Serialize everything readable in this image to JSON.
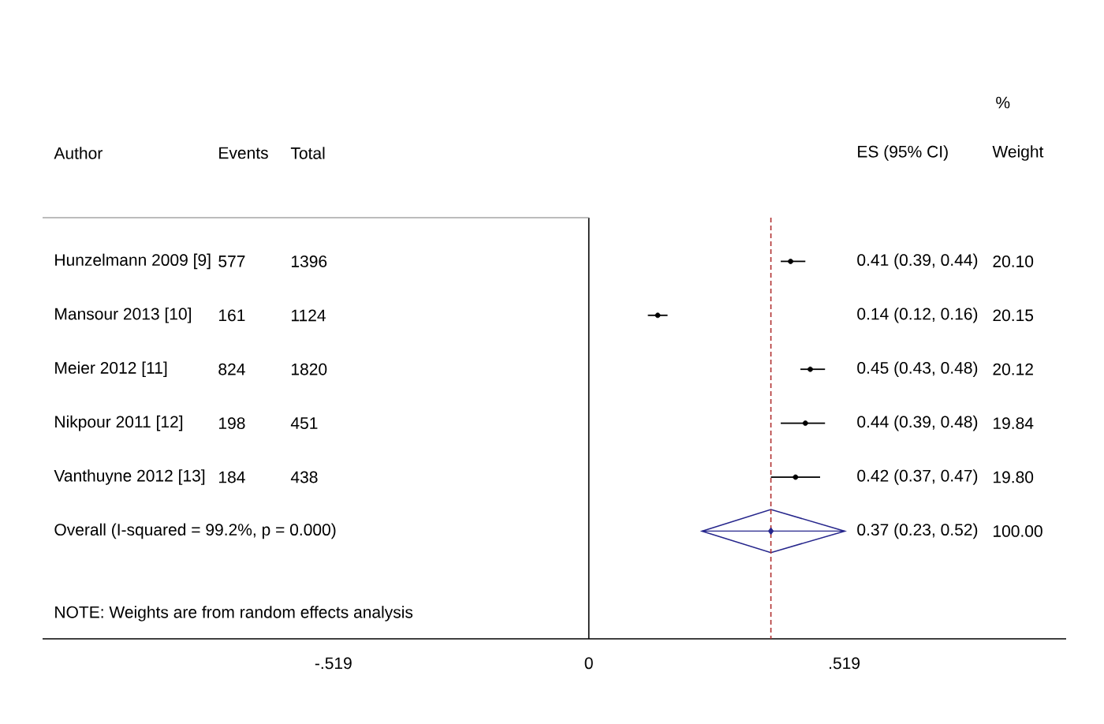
{
  "chart_data": {
    "type": "scatter",
    "orientation": "horizontal",
    "ylabel": "Author",
    "categories": [
      "Hunzelmann 2009 [9]",
      "Mansour 2013 [10]",
      "Meier 2012 [11]",
      "Nikpour 2011 [12]",
      "Vanthuyne 2012 [13]",
      "Overall (I-squared = 99.2%, p = 0.000)"
    ],
    "series": [
      {
        "color": "#000000",
        "marker": "circle",
        "values": [
          0.41,
          0.14,
          0.45,
          0.44,
          0.42,
          null
        ],
        "errors": [
          [
            0.39,
            0.44
          ],
          [
            0.12,
            0.16
          ],
          [
            0.43,
            0.48
          ],
          [
            0.39,
            0.48
          ],
          [
            0.37,
            0.47
          ],
          null
        ]
      },
      {
        "color": "#26268c",
        "marker": "diamond",
        "values": [
          null,
          null,
          null,
          null,
          null,
          0.37
        ],
        "errors": [
          null,
          null,
          null,
          null,
          null,
          [
            0.23,
            0.52
          ]
        ]
      }
    ],
    "xlim": [
      -1.11,
      0.97
    ],
    "xticks": [
      {
        "value": -0.519,
        "label": "-.519"
      },
      0,
      {
        "value": 0.519,
        "label": ".519"
      }
    ],
    "ref_lines": [
      {
        "axis": "x",
        "value": 0,
        "color": "#000000",
        "line_style": "solid"
      },
      {
        "axis": "x",
        "value": 0.37,
        "color": "#b03030",
        "line_style": "dashed"
      }
    ],
    "annotations": [
      "Events",
      "Total",
      "ES (95% CI)",
      "%",
      "Weight",
      "577",
      "161",
      "824",
      "198",
      "184",
      "1396",
      "1124",
      "1820",
      "451",
      "438",
      "0.41 (0.39, 0.44)",
      "0.14 (0.12, 0.16)",
      "0.45 (0.43, 0.48)",
      "0.44 (0.39, 0.48)",
      "0.42 (0.37, 0.47)",
      "0.37 (0.23, 0.52)",
      "20.10",
      "20.15",
      "20.12",
      "19.84",
      "19.80",
      "100.00",
      "NOTE: Weights are from random effects analysis"
    ]
  }
}
